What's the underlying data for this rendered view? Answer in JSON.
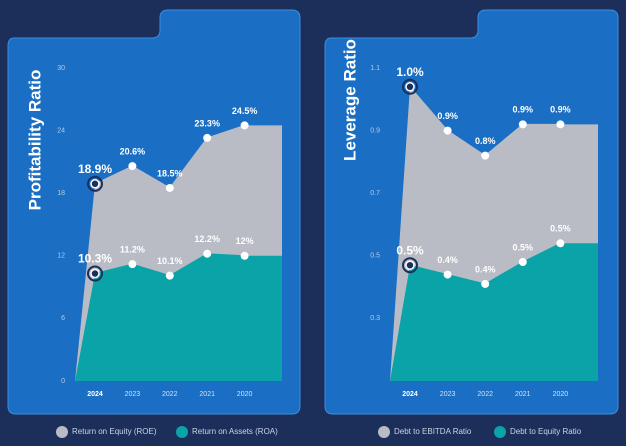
{
  "chart_data": [
    {
      "type": "area",
      "title": "Profitability Ratio",
      "categories": [
        "2024",
        "2023",
        "2022",
        "2021",
        "2020"
      ],
      "series": [
        {
          "name": "Return on Equity (ROE)",
          "color": "#b9bcc4",
          "values": [
            18.9,
            20.6,
            18.5,
            23.3,
            24.5
          ],
          "value_labels": [
            "18.9%",
            "20.6%",
            "18.5%",
            "23.3%",
            "24.5%"
          ]
        },
        {
          "name": "Return on Assets (ROA)",
          "color": "#0aa3a8",
          "values": [
            10.3,
            11.2,
            10.1,
            12.2,
            12
          ],
          "value_labels": [
            "10.3%",
            "11.2%",
            "10.1%",
            "12.2%",
            "12%"
          ]
        }
      ],
      "ylim": [
        0,
        30
      ],
      "yticks": [
        0,
        6,
        12,
        18,
        24,
        30
      ]
    },
    {
      "type": "area",
      "title": "Leverage Ratio",
      "categories": [
        "2024",
        "2023",
        "2022",
        "2021",
        "2020"
      ],
      "series": [
        {
          "name": "Debt to EBITDA Ratio",
          "color": "#b9bcc4",
          "values": [
            1.04,
            0.9,
            0.82,
            0.92,
            0.92
          ],
          "value_labels": [
            "1.0%",
            "0.9%",
            "0.8%",
            "0.9%",
            "0.9%"
          ]
        },
        {
          "name": "Debt to Equity Ratio",
          "color": "#0aa3a8",
          "values": [
            0.47,
            0.44,
            0.41,
            0.48,
            0.54
          ],
          "value_labels": [
            "0.5%",
            "0.4%",
            "0.4%",
            "0.5%",
            "0.5%"
          ]
        }
      ],
      "ylim": [
        0.1,
        1.1
      ],
      "yticks": [
        0.3,
        0.5,
        0.7,
        0.9,
        1.1
      ]
    }
  ]
}
